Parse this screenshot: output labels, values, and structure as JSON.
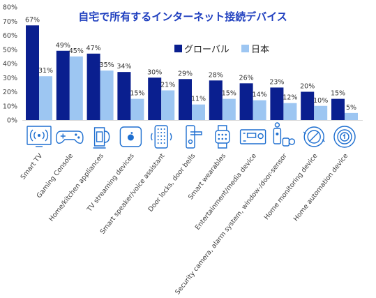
{
  "chart_data": {
    "type": "bar",
    "title": "自宅で所有するインターネット接続デバイス",
    "ylim": [
      0,
      80
    ],
    "yticks": [
      "0%",
      "10%",
      "20%",
      "30%",
      "40%",
      "50%",
      "60%",
      "70%",
      "80%"
    ],
    "legend_position": "top-right",
    "categories": [
      "Smart TV",
      "Gaming Console",
      "Home/kitchen appliances",
      "TV streaming devices",
      "Smart speaker/voice assistant",
      "Door locks, door bells",
      "Smart wearables",
      "Entertainment/media device",
      "Security camera, alarm system, window-/door-sensor",
      "Home monitoring device",
      "Home automation device"
    ],
    "series": [
      {
        "name": "グローバル",
        "color": "#0a1f8f",
        "values": [
          67,
          49,
          47,
          34,
          30,
          29,
          28,
          26,
          23,
          20,
          15
        ],
        "labels": [
          "67%",
          "49%",
          "47%",
          "34%",
          "30%",
          "29%",
          "28%",
          "26%",
          "23%",
          "20%",
          "15%"
        ]
      },
      {
        "name": "日本",
        "color": "#9dc6f2",
        "values": [
          31,
          45,
          35,
          15,
          21,
          11,
          15,
          14,
          12,
          10,
          5
        ],
        "labels": [
          "31%",
          "45%",
          "35%",
          "15%",
          "21%",
          "11%",
          "15%",
          "14%",
          "12%",
          "10%",
          "5%"
        ]
      }
    ],
    "icons": [
      "smart-tv-icon",
      "gamepad-icon",
      "kettle-icon",
      "streaming-box-icon",
      "smart-speaker-icon",
      "door-lock-icon",
      "smartwatch-icon",
      "media-receiver-icon",
      "security-camera-icon",
      "monitoring-icon",
      "thermostat-icon"
    ]
  }
}
